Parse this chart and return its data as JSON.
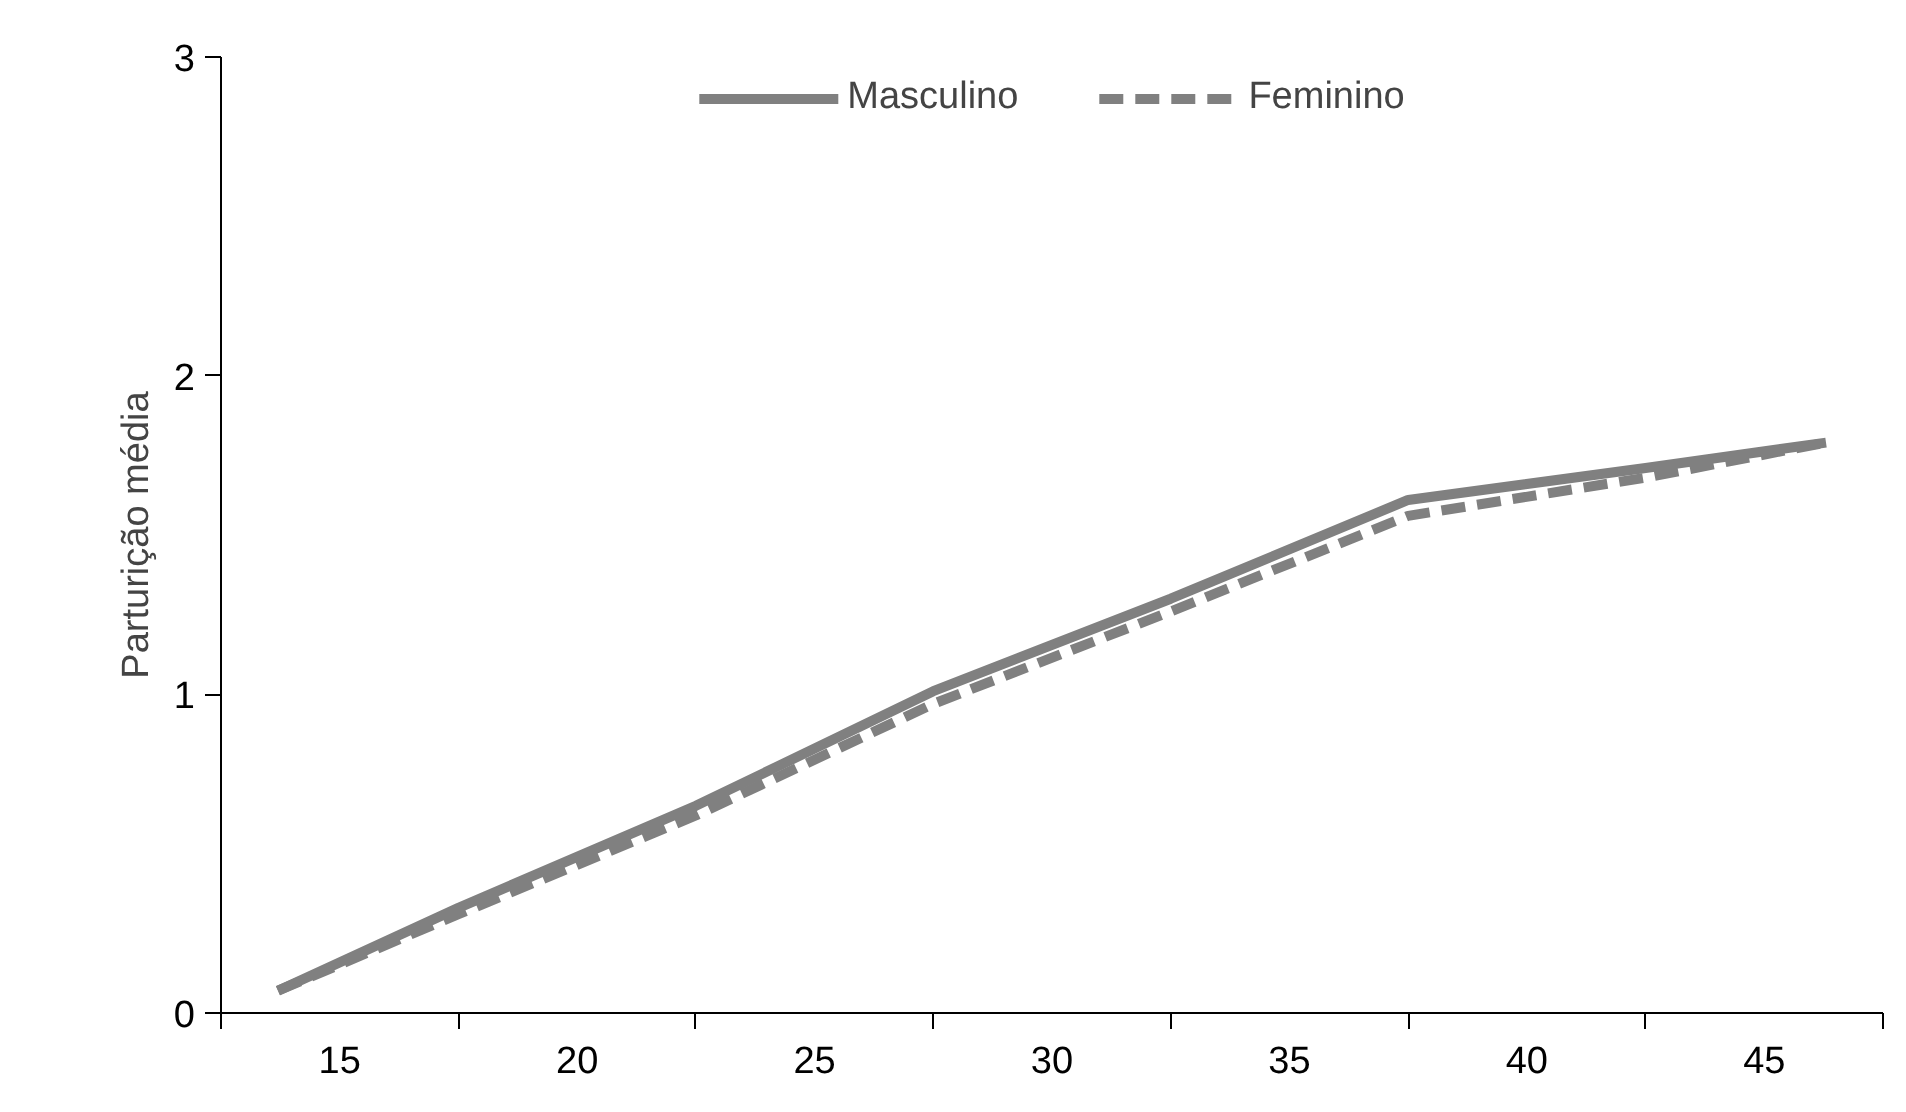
{
  "chart_data": {
    "type": "line",
    "ylabel": "Parturição média",
    "x": [
      13.7,
      17.5,
      22.5,
      27.5,
      32.5,
      37.5,
      42.5,
      46.3
    ],
    "series": [
      {
        "name": "Masculino",
        "color": "#808080",
        "line_style": "solid",
        "values": [
          0.07,
          0.33,
          0.65,
          1.01,
          1.3,
          1.61,
          1.71,
          1.79
        ]
      },
      {
        "name": "Feminino",
        "color": "#808080",
        "line_style": "dashed",
        "values": [
          0.07,
          0.31,
          0.62,
          0.97,
          1.26,
          1.56,
          1.68,
          1.79
        ]
      }
    ],
    "xlim": [
      12.5,
      47.5
    ],
    "xticks": [
      15,
      20,
      25,
      30,
      35,
      40,
      45,
      {
        "value": 12.5,
        "label": null
      },
      {
        "value": 17.5,
        "label": null
      },
      {
        "value": 22.5,
        "label": null
      },
      {
        "value": 27.5,
        "label": null
      },
      {
        "value": 32.5,
        "label": null
      },
      {
        "value": 37.5,
        "label": null
      },
      {
        "value": 42.5,
        "label": null
      },
      {
        "value": 47.5,
        "label": null
      }
    ],
    "ylim": [
      0,
      3
    ],
    "yticks": [
      0,
      1,
      2,
      3
    ],
    "grid": false,
    "legend": "top",
    "marker": "none"
  }
}
